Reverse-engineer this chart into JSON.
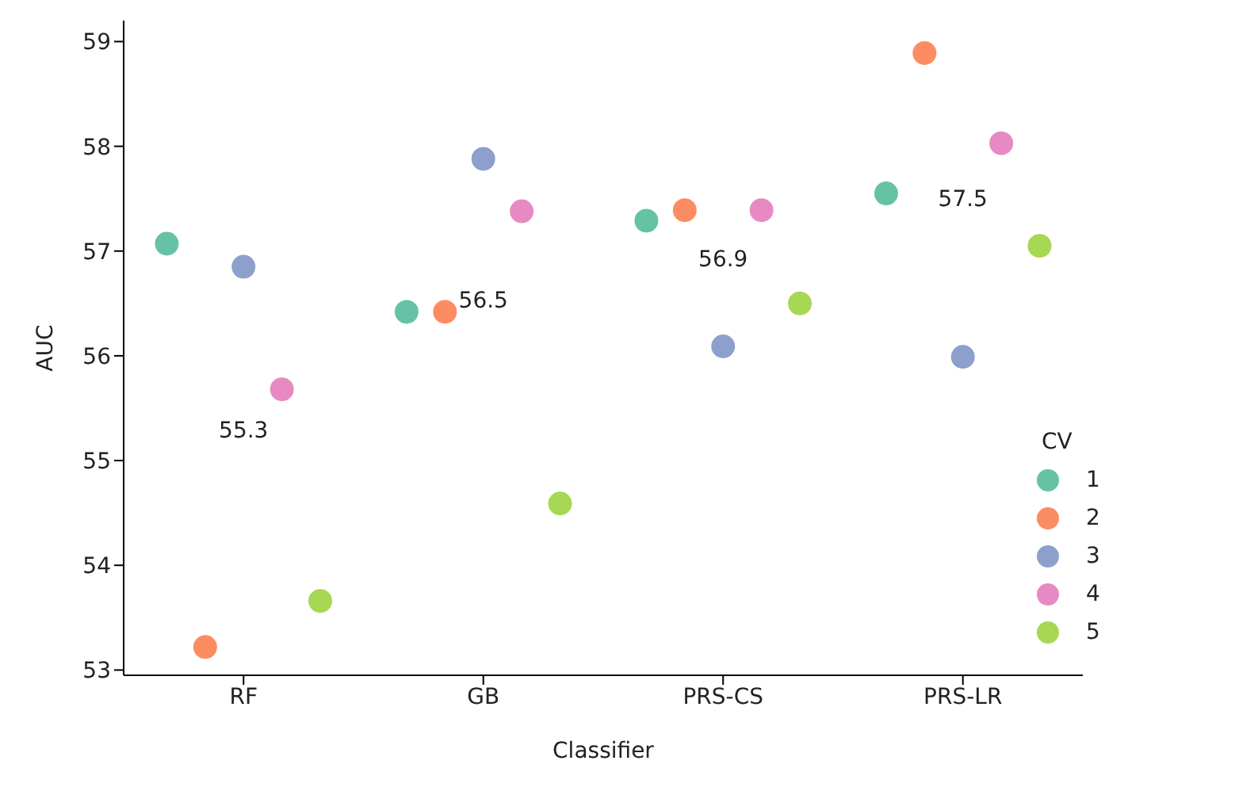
{
  "chart_data": {
    "type": "scatter",
    "xlabel": "Classifier",
    "ylabel": "AUC",
    "legend_title": "CV",
    "categories": [
      "RF",
      "GB",
      "PRS-CS",
      "PRS-LR"
    ],
    "series": [
      {
        "name": "1",
        "color": "#66c2a5",
        "values": [
          57.07,
          56.42,
          57.29,
          57.55
        ]
      },
      {
        "name": "2",
        "color": "#fc8d62",
        "values": [
          53.22,
          56.42,
          57.39,
          58.89
        ]
      },
      {
        "name": "3",
        "color": "#8da0cb",
        "values": [
          56.85,
          57.88,
          56.09,
          55.99
        ]
      },
      {
        "name": "4",
        "color": "#e78ac3",
        "values": [
          55.68,
          57.38,
          57.39,
          58.03
        ]
      },
      {
        "name": "5",
        "color": "#a6d854",
        "values": [
          53.66,
          54.59,
          56.5,
          57.05
        ]
      }
    ],
    "annotations": [
      "55.3",
      "56.5",
      "56.9",
      "57.5"
    ],
    "ylim": [
      52.95,
      59.2
    ],
    "yticks": [
      53,
      54,
      55,
      56,
      57,
      58,
      59
    ],
    "grid": false,
    "legend": "bottom right",
    "marker": "circle"
  }
}
